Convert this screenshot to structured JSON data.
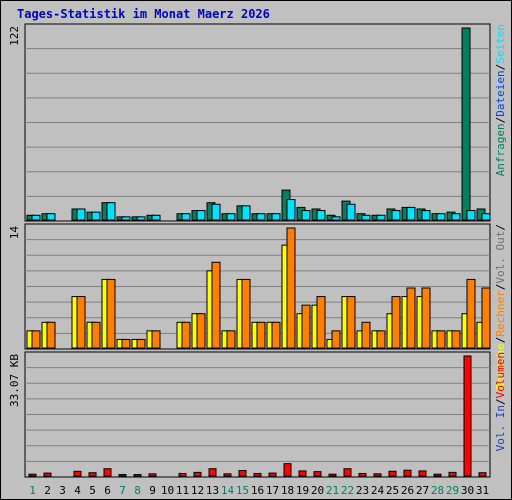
{
  "title": "Tages-Statistik im Monat Maerz 2026",
  "colors": {
    "background": "#c0c0c0",
    "border": "#000000",
    "title": "#0000cc",
    "gridline": "#808080",
    "anfragen": "#008060",
    "dateien": "#0040ff",
    "seiten": "#00e0ff",
    "besuche": "#ffff00",
    "rechner": "#ff8000",
    "volumen": "#ff0000",
    "weekday_label": "#000000",
    "weekend_label": "#008060"
  },
  "chart_data": [
    {
      "type": "bar",
      "name": "top",
      "top_label": "122",
      "ylim": [
        0,
        122
      ],
      "legend": [
        "Anfragen",
        "/",
        "Dateien",
        "/",
        "Seiten"
      ],
      "categories": [
        "1",
        "2",
        "3",
        "4",
        "5",
        "6",
        "7",
        "8",
        "9",
        "10",
        "11",
        "12",
        "13",
        "14",
        "15",
        "16",
        "17",
        "18",
        "19",
        "20",
        "21",
        "22",
        "23",
        "24",
        "25",
        "26",
        "27",
        "28",
        "29",
        "30",
        "31"
      ],
      "weekend": [
        "1",
        "7",
        "8",
        "14",
        "15",
        "21",
        "22",
        "28",
        "29"
      ],
      "series": [
        {
          "name": "Anfragen",
          "values": [
            3,
            4,
            0,
            7,
            5,
            11,
            2,
            2,
            3,
            0,
            4,
            6,
            11,
            4,
            9,
            4,
            4,
            19,
            8,
            7,
            3,
            12,
            4,
            3,
            7,
            8,
            7,
            4,
            5,
            122,
            7
          ]
        },
        {
          "name": "Seiten",
          "values": [
            3,
            4,
            0,
            7,
            5,
            11,
            2,
            2,
            3,
            0,
            4,
            6,
            10,
            4,
            9,
            4,
            4,
            13,
            6,
            6,
            2,
            10,
            3,
            3,
            6,
            8,
            6,
            4,
            4,
            6,
            4
          ]
        }
      ]
    },
    {
      "type": "bar",
      "name": "middle",
      "top_label": "14",
      "ylim": [
        0,
        14
      ],
      "legend": [
        "Besuche",
        "/",
        "Rechner",
        "/",
        "Vol. Out",
        "/"
      ],
      "categories": [
        "1",
        "2",
        "3",
        "4",
        "5",
        "6",
        "7",
        "8",
        "9",
        "10",
        "11",
        "12",
        "13",
        "14",
        "15",
        "16",
        "17",
        "18",
        "19",
        "20",
        "21",
        "22",
        "23",
        "24",
        "25",
        "26",
        "27",
        "28",
        "29",
        "30",
        "31"
      ],
      "series": [
        {
          "name": "Besuche",
          "values": [
            2,
            3,
            0,
            6,
            3,
            8,
            1,
            1,
            2,
            0,
            3,
            4,
            9,
            2,
            8,
            3,
            3,
            12,
            4,
            5,
            1,
            6,
            2,
            2,
            4,
            6,
            6,
            2,
            2,
            4,
            3
          ]
        },
        {
          "name": "Rechner",
          "values": [
            2,
            3,
            0,
            6,
            3,
            8,
            1,
            1,
            2,
            0,
            3,
            4,
            10,
            2,
            8,
            3,
            3,
            14,
            5,
            6,
            2,
            6,
            3,
            2,
            6,
            7,
            7,
            2,
            2,
            8,
            7
          ]
        }
      ]
    },
    {
      "type": "bar",
      "name": "bottom",
      "top_label": "33.07 KB",
      "ylim": [
        0,
        33.07
      ],
      "legend": [
        "Vol. In",
        "/",
        "Volumen"
      ],
      "categories": [
        "1",
        "2",
        "3",
        "4",
        "5",
        "6",
        "7",
        "8",
        "9",
        "10",
        "11",
        "12",
        "13",
        "14",
        "15",
        "16",
        "17",
        "18",
        "19",
        "20",
        "21",
        "22",
        "23",
        "24",
        "25",
        "26",
        "27",
        "28",
        "29",
        "30",
        "31"
      ],
      "series": [
        {
          "name": "Volumen",
          "values": [
            0.5,
            0.8,
            0,
            1.3,
            0.9,
            2.0,
            0.4,
            0.4,
            0.6,
            0,
            0.7,
            1.0,
            2.0,
            0.6,
            1.5,
            0.7,
            0.8,
            3.4,
            1.4,
            1.2,
            0.5,
            2.0,
            0.7,
            0.6,
            1.3,
            1.6,
            1.4,
            0.5,
            1.0,
            33.07,
            0.9
          ]
        }
      ]
    }
  ]
}
